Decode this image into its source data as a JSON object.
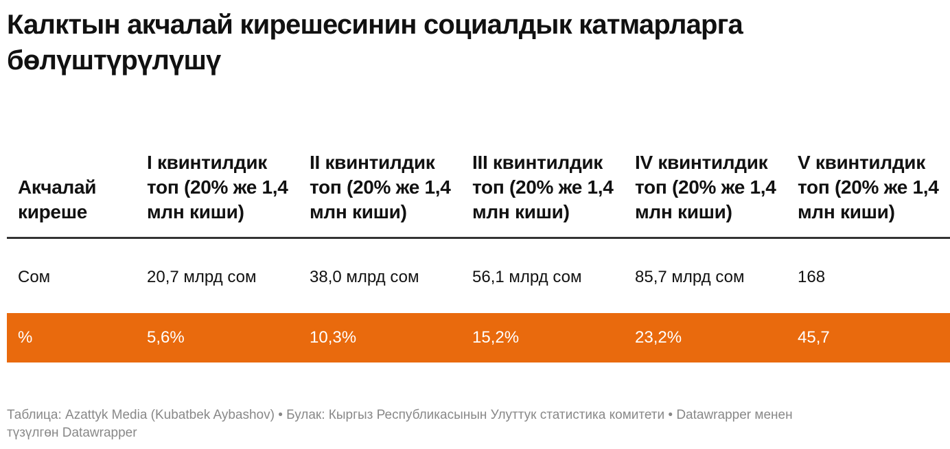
{
  "title": "Калктын акчалай кирешесинин социалдык катмарларга бөлүштүрүлүшү",
  "chart_data": {
    "type": "table",
    "columns": [
      "Акчалай киреше",
      "I квинтилдик топ (20% же 1,4 млн киши)",
      "II квинтилдик топ (20% же 1,4 млн киши)",
      "III квинтилдик топ (20% же 1,4 млн киши)",
      "IV квинтилдик топ (20% же 1,4 млн киши)",
      "V квинтилдик топ (20% же 1,4 млн киши)"
    ],
    "rows": [
      {
        "label": "Сом",
        "values": [
          "20,7 млрд сом",
          "38,0 млрд сом",
          "56,1 млрд сом",
          "85,7 млрд сом",
          "168"
        ],
        "highlight": false
      },
      {
        "label": "%",
        "values": [
          "5,6%",
          "10,3%",
          "15,2%",
          "23,2%",
          "45,7"
        ],
        "highlight": true
      }
    ],
    "highlight_color": "#e96a0d"
  },
  "footer": "Таблица: Azattyk Media (Kubatbek Aybashov) • Булак: Кыргыз Республикасынын Улуттук статистика комитети • Datawrapper менен түзүлгөн Datawrapper"
}
